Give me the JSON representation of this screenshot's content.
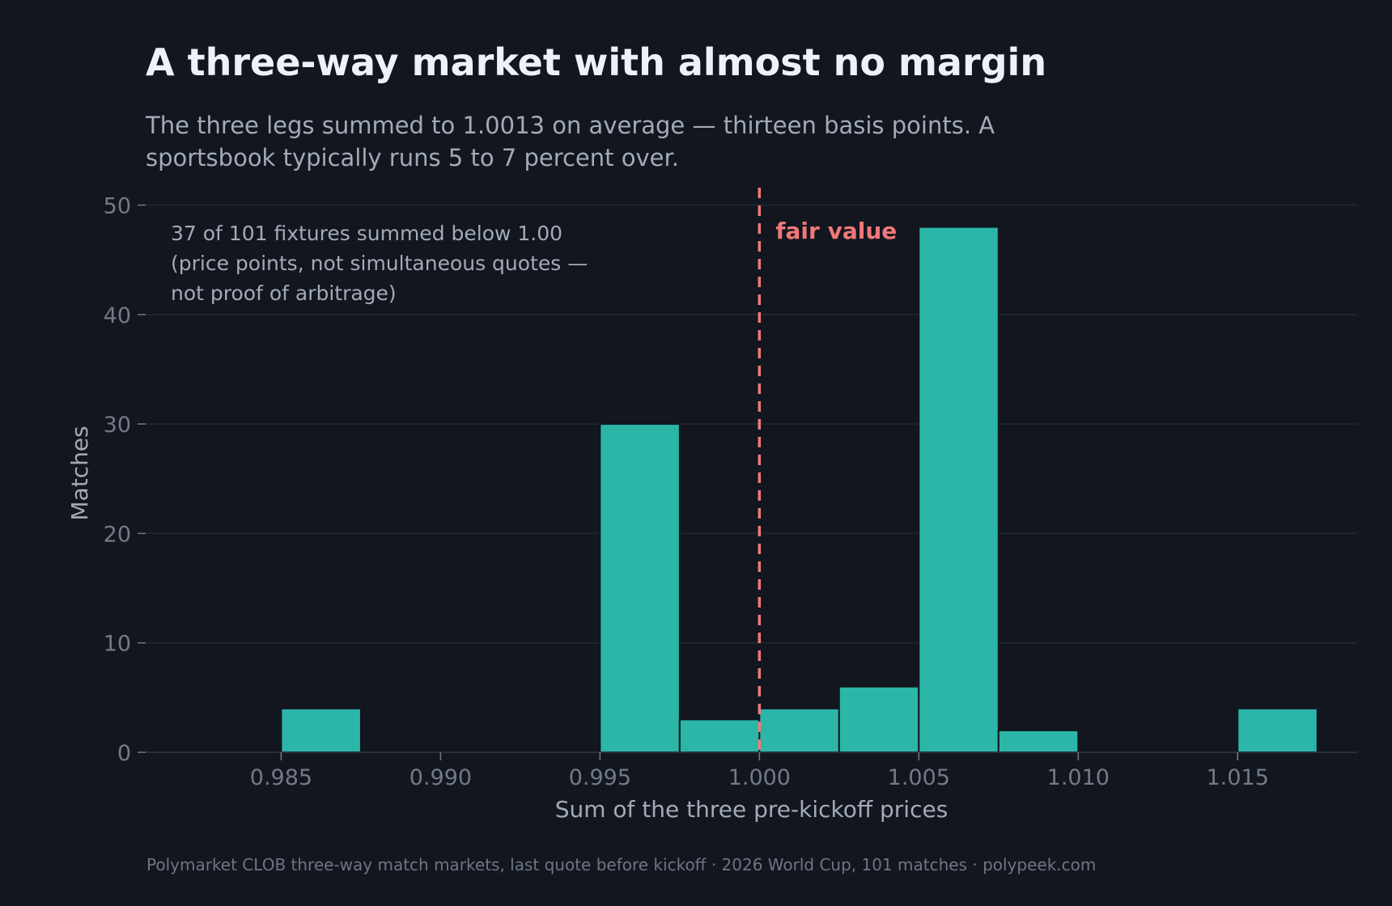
{
  "title": "A three-way market with almost no margin",
  "subtitle": "The three legs summed to 1.0013 on average — thirteen basis points. A sportsbook typically runs 5 to 7 percent over.",
  "footer": "Polymarket CLOB three-way match markets, last quote before kickoff  ·  2026 World Cup, 101 matches  ·  polypeek.com",
  "colors": {
    "background": "#12161f",
    "bar": "#2bb6a8",
    "fair_value_line": "#f07878",
    "grid": "#222834",
    "tick_text": "#737a88",
    "label_text": "#a3aab8"
  },
  "chart_data": {
    "type": "bar",
    "xlabel": "Sum of the three pre-kickoff prices",
    "ylabel": "Matches",
    "xlim": [
      0.98075,
      1.01875
    ],
    "ylim": [
      0,
      51
    ],
    "x_ticks": [
      "0.985",
      "0.990",
      "0.995",
      "1.000",
      "1.005",
      "1.010",
      "1.015"
    ],
    "x_tick_values": [
      0.985,
      0.99,
      0.995,
      1.0,
      1.005,
      1.01,
      1.015
    ],
    "y_ticks": [
      0,
      10,
      20,
      30,
      40,
      50
    ],
    "grid": true,
    "bin_width": 0.0025,
    "bins": [
      {
        "start": 0.9825,
        "end": 0.985,
        "count": 0
      },
      {
        "start": 0.985,
        "end": 0.9875,
        "count": 4
      },
      {
        "start": 0.995,
        "end": 0.9975,
        "count": 30
      },
      {
        "start": 0.9975,
        "end": 1.0,
        "count": 3
      },
      {
        "start": 1.0,
        "end": 1.0025,
        "count": 4
      },
      {
        "start": 1.0025,
        "end": 1.005,
        "count": 6
      },
      {
        "start": 1.005,
        "end": 1.0075,
        "count": 48
      },
      {
        "start": 1.0075,
        "end": 1.01,
        "count": 2
      },
      {
        "start": 1.015,
        "end": 1.0175,
        "count": 4
      }
    ],
    "reference_line": {
      "x": 1.0,
      "label": "fair value",
      "style": "dashed"
    },
    "annotation": [
      "37 of 101 fixtures summed below 1.00",
      "(price points, not simultaneous quotes —",
      "not proof of arbitrage)"
    ]
  }
}
